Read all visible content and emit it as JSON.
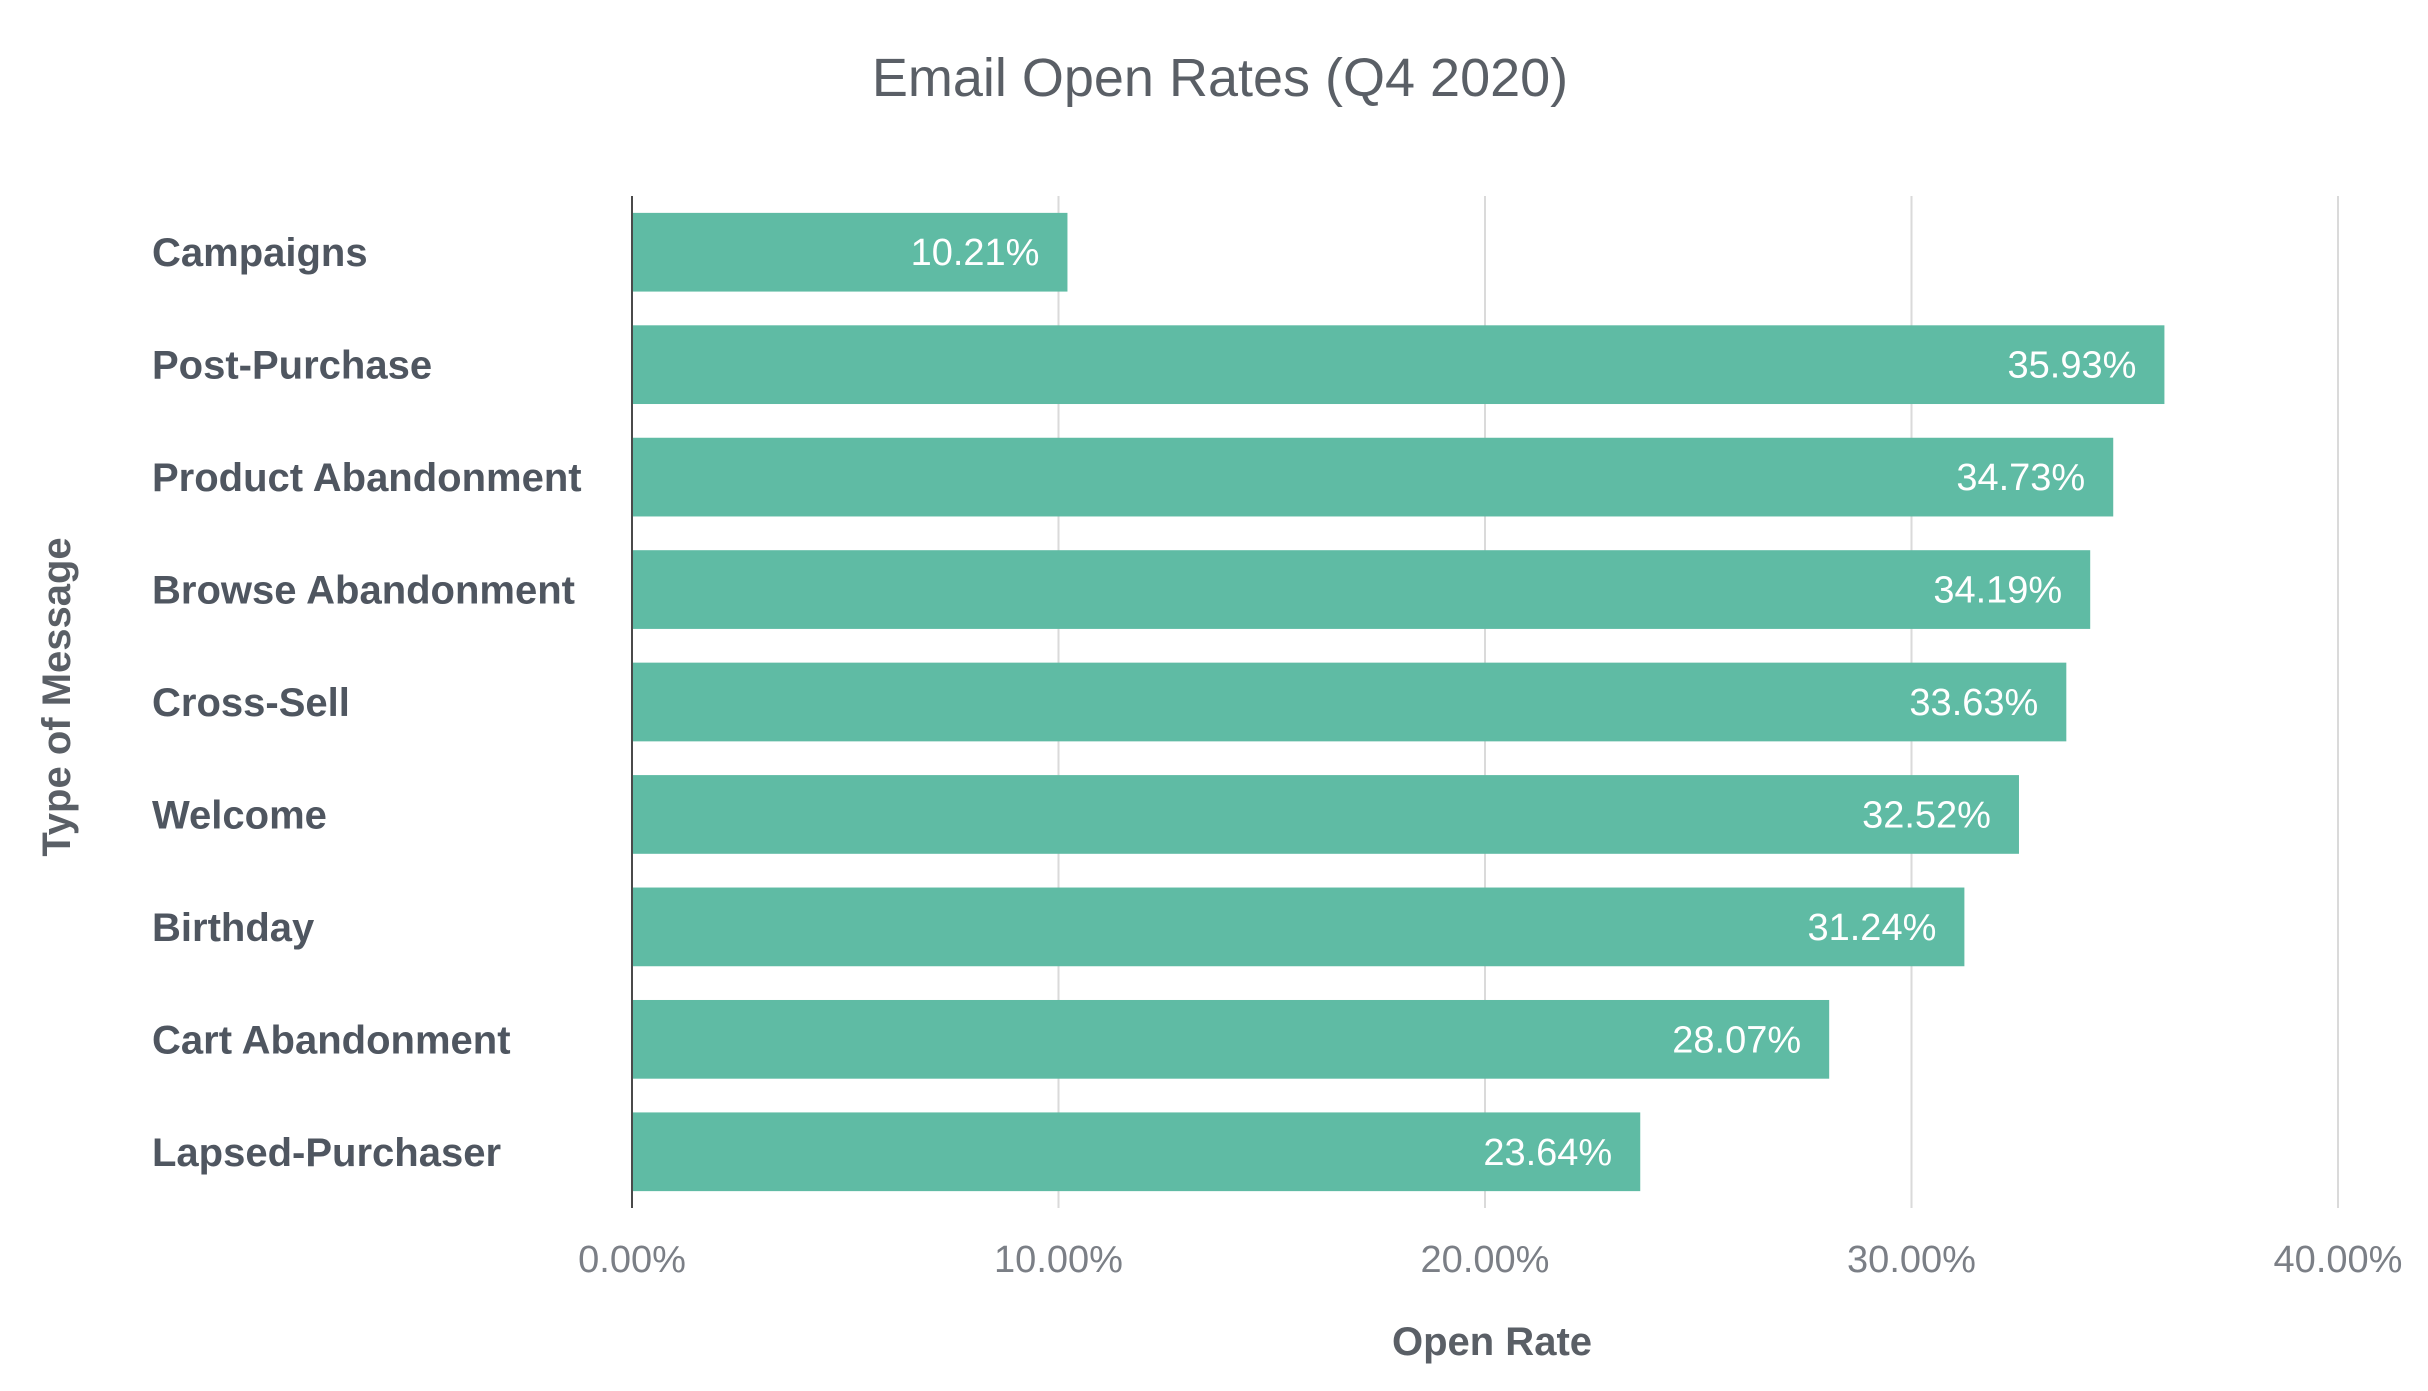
{
  "chart_data": {
    "type": "bar",
    "orientation": "horizontal",
    "title": "Email Open Rates (Q4 2020)",
    "xlabel": "Open Rate",
    "ylabel": "Type of Message",
    "categories": [
      "Campaigns",
      "Post-Purchase",
      "Product Abandonment",
      "Browse Abandonment",
      "Cross-Sell",
      "Welcome",
      "Birthday",
      "Cart Abandonment",
      "Lapsed-Purchaser"
    ],
    "values": [
      10.21,
      35.93,
      34.73,
      34.19,
      33.63,
      32.52,
      31.24,
      28.07,
      23.64
    ],
    "value_labels": [
      "10.21%",
      "35.93%",
      "34.73%",
      "34.19%",
      "33.63%",
      "32.52%",
      "31.24%",
      "28.07%",
      "23.64%"
    ],
    "xlim": [
      0,
      40
    ],
    "xticks": [
      0,
      10,
      20,
      30,
      40
    ],
    "xtick_labels": [
      "0.00%",
      "10.00%",
      "20.00%",
      "30.00%",
      "40.00%"
    ],
    "grid": true,
    "legend": "none",
    "bar_color": "#5fbba4"
  }
}
